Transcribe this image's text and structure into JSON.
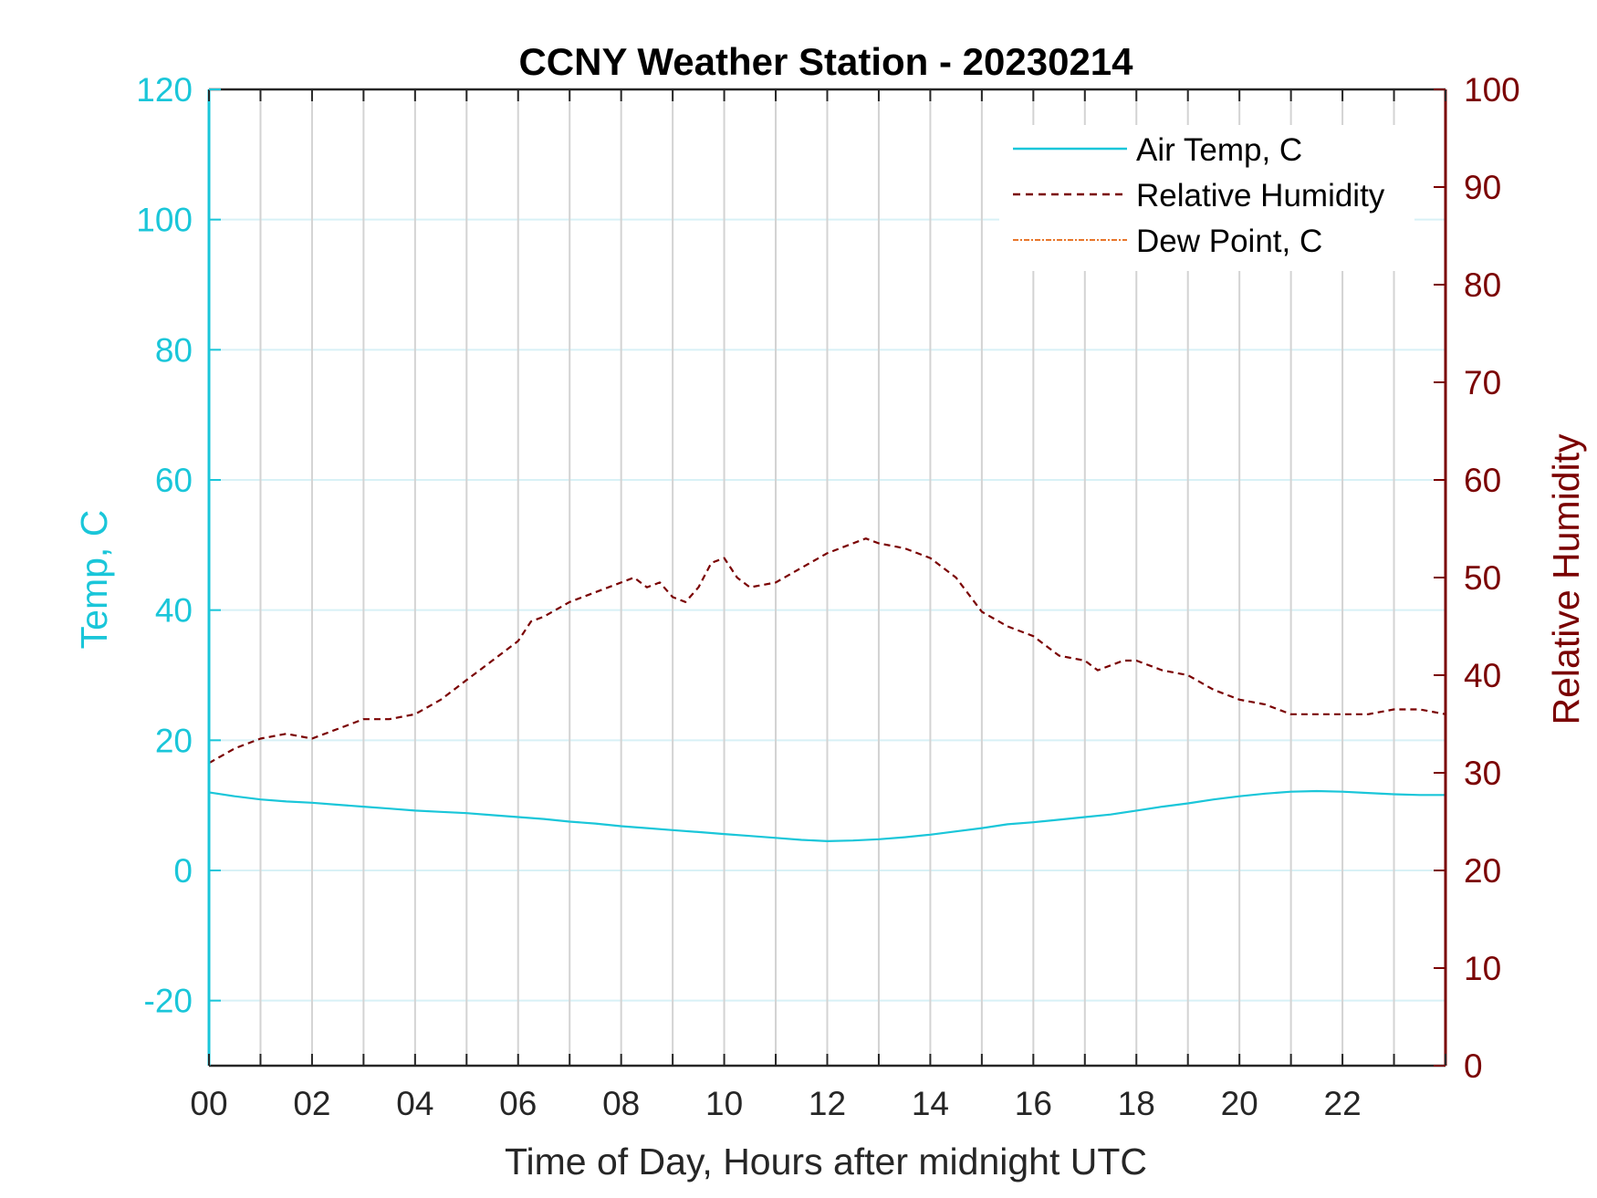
{
  "chart_data": {
    "type": "line",
    "title": "CCNY Weather Station - 20230214",
    "xlabel": "Time of Day, Hours after midnight UTC",
    "ylabel_left": "Temp, C",
    "ylabel_right": "Relative Humidity",
    "xlim": [
      0,
      24
    ],
    "ylim_left": [
      -30,
      120
    ],
    "ylim_right": [
      0,
      100
    ],
    "x_tick_labels": [
      "00",
      "02",
      "04",
      "06",
      "08",
      "10",
      "12",
      "14",
      "16",
      "18",
      "20",
      "22"
    ],
    "y_left_ticks": [
      "-20",
      "0",
      "20",
      "40",
      "60",
      "80",
      "100",
      "120"
    ],
    "y_right_ticks": [
      "0",
      "10",
      "20",
      "30",
      "40",
      "50",
      "60",
      "70",
      "80",
      "90",
      "100"
    ],
    "grid": true,
    "legend_position": "top-right",
    "colors": {
      "temp": "#1ac6d9",
      "humidity": "#7a0000",
      "dewpoint": "#e8762b",
      "grid_vertical": "#d3d3d3",
      "grid_horizontal": "#d8f1f6"
    },
    "series": [
      {
        "name": "Air Temp, C",
        "axis": "left",
        "style": "solid",
        "x": [
          0,
          0.5,
          1,
          1.5,
          2,
          2.5,
          3,
          3.5,
          4,
          4.5,
          5,
          5.5,
          6,
          6.5,
          7,
          7.5,
          8,
          8.5,
          9,
          9.5,
          10,
          10.5,
          11,
          11.5,
          12,
          12.5,
          13,
          13.5,
          14,
          14.5,
          15,
          15.5,
          16,
          16.5,
          17,
          17.5,
          18,
          18.5,
          19,
          19.5,
          20,
          20.5,
          21,
          21.5,
          22,
          22.5,
          23,
          23.5,
          24
        ],
        "values": [
          12.0,
          11.4,
          10.9,
          10.6,
          10.4,
          10.1,
          9.8,
          9.5,
          9.2,
          9.0,
          8.8,
          8.5,
          8.2,
          7.9,
          7.5,
          7.2,
          6.8,
          6.5,
          6.2,
          5.9,
          5.6,
          5.3,
          5.0,
          4.7,
          4.5,
          4.6,
          4.8,
          5.1,
          5.5,
          6.0,
          6.5,
          7.1,
          7.4,
          7.8,
          8.2,
          8.6,
          9.2,
          9.8,
          10.3,
          10.9,
          11.4,
          11.8,
          12.1,
          12.2,
          12.1,
          11.9,
          11.7,
          11.6,
          11.6
        ]
      },
      {
        "name": "Relative Humidity",
        "axis": "right",
        "style": "dashed",
        "x": [
          0,
          0.5,
          1,
          1.5,
          2,
          2.5,
          3,
          3.5,
          4,
          4.5,
          5,
          5.5,
          6,
          6.25,
          6.5,
          7,
          7.5,
          8,
          8.25,
          8.5,
          8.75,
          9,
          9.25,
          9.5,
          9.75,
          10,
          10.25,
          10.5,
          11,
          11.5,
          12,
          12.5,
          12.75,
          13,
          13.5,
          14,
          14.5,
          15,
          15.5,
          16,
          16.25,
          16.5,
          17,
          17.25,
          17.5,
          17.75,
          18,
          18.5,
          19,
          19.5,
          20,
          20.5,
          21,
          21.5,
          22,
          22.5,
          23,
          23.5,
          24
        ],
        "values": [
          31.0,
          32.5,
          33.5,
          34.0,
          33.5,
          34.5,
          35.5,
          35.5,
          36.0,
          37.5,
          39.5,
          41.5,
          43.5,
          45.5,
          46.0,
          47.5,
          48.5,
          49.5,
          50.0,
          49.0,
          49.5,
          48.0,
          47.5,
          49.0,
          51.5,
          52.0,
          50.0,
          49.0,
          49.5,
          51.0,
          52.5,
          53.5,
          54.0,
          53.5,
          53.0,
          52.0,
          50.0,
          46.5,
          45.0,
          44.0,
          43.0,
          42.0,
          41.5,
          40.5,
          41.0,
          41.5,
          41.5,
          40.5,
          40.0,
          38.5,
          37.5,
          37.0,
          36.0,
          36.0,
          36.0,
          36.0,
          36.5,
          36.5,
          36.0
        ]
      },
      {
        "name": "Dew Point, C",
        "axis": "left",
        "style": "dash-dot",
        "x": [],
        "values": []
      }
    ]
  }
}
